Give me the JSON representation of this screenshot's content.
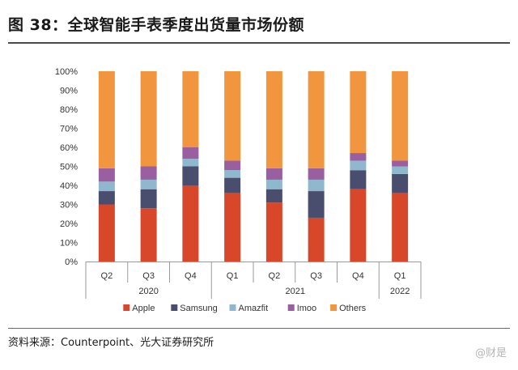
{
  "header": {
    "title": "图 38：全球智能手表季度出货量市场份额"
  },
  "footer": {
    "source": "资料来源：Counterpoint、光大证券研究所",
    "watermark": "@财是"
  },
  "chart_data": {
    "type": "bar",
    "stacked": true,
    "categories": [
      "Q2",
      "Q3",
      "Q4",
      "Q1",
      "Q2",
      "Q3",
      "Q4",
      "Q1"
    ],
    "years": [
      {
        "label": "2020",
        "span": [
          0,
          2
        ]
      },
      {
        "label": "2021",
        "span": [
          3,
          6
        ]
      },
      {
        "label": "2022",
        "span": [
          7,
          7
        ]
      }
    ],
    "series": [
      {
        "name": "Apple",
        "color": "#d9472b",
        "values": [
          30,
          28,
          40,
          36,
          31,
          23,
          38,
          36
        ]
      },
      {
        "name": "Samsung",
        "color": "#4a4e6e",
        "values": [
          7,
          10,
          10,
          8,
          7,
          14,
          10,
          10
        ]
      },
      {
        "name": "Amazfit",
        "color": "#8fb8cf",
        "values": [
          5,
          5,
          4,
          4,
          5,
          6,
          5,
          4
        ]
      },
      {
        "name": "Imoo",
        "color": "#9a5fa0",
        "values": [
          7,
          7,
          6,
          5,
          6,
          6,
          4,
          3
        ]
      },
      {
        "name": "Others",
        "color": "#f2953f",
        "values": [
          51,
          50,
          40,
          47,
          51,
          51,
          43,
          47
        ]
      }
    ],
    "yticks": [
      "0%",
      "10%",
      "20%",
      "30%",
      "40%",
      "50%",
      "60%",
      "70%",
      "80%",
      "90%",
      "100%"
    ],
    "ylim": [
      0,
      100
    ],
    "grid": false,
    "legend_position": "bottom"
  }
}
